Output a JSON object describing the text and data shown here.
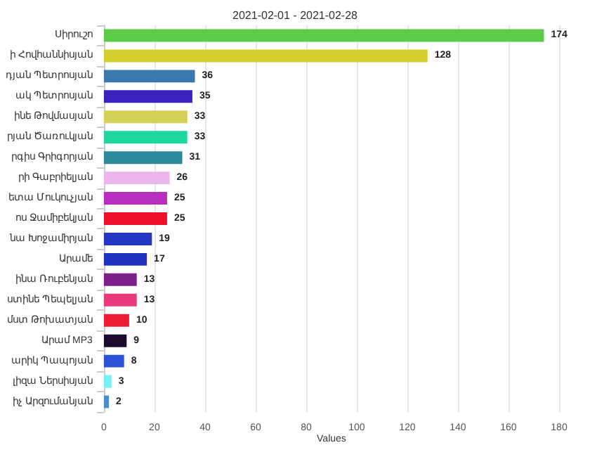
{
  "chart_data": {
    "type": "bar",
    "orientation": "horizontal",
    "title": "2021-02-01 - 2021-02-28",
    "xlabel": "Values",
    "categories": [
      "Սիրուշո",
      "ի Հովհաննիսյան",
      "դյան Պետրոսյան",
      "ակ Պետրոսյան",
      "ինե Թովմասյան",
      "րյան Ծառուկյան",
      "րգիս Գրիգորյան",
      "րի Գաբրիելյան",
      "ետա Մուկուչյան",
      "ոս Ջամիբեկյան",
      "նա Խոջամիրյան",
      "Արամե",
      "ինա Ռուբենյան",
      "ստինե Պեպելյան",
      "մստ Թոխատյան",
      "Արամ MP3",
      "արիկ Պապոյան",
      "լիզա Ներսիսյան",
      "իչ Արզումանյան"
    ],
    "values": [
      174,
      128,
      36,
      35,
      33,
      33,
      31,
      26,
      25,
      25,
      19,
      17,
      13,
      13,
      10,
      9,
      8,
      3,
      2
    ],
    "colors": [
      "#5ccc48",
      "#d4cf30",
      "#3a78ad",
      "#3a22c0",
      "#d3d158",
      "#1ed69e",
      "#2a8a9c",
      "#eab6ec",
      "#b72ec0",
      "#ec1028",
      "#2436c4",
      "#2030c0",
      "#7c1e8c",
      "#e83a7c",
      "#ec1c34",
      "#1c0a2c",
      "#2c52d8",
      "#72f2f2",
      "#4a8ccc"
    ],
    "xlim": [
      0,
      180
    ],
    "xticks": [
      0,
      20,
      40,
      60,
      80,
      100,
      120,
      140,
      160,
      180
    ],
    "grid": "x",
    "data_labels": true
  }
}
